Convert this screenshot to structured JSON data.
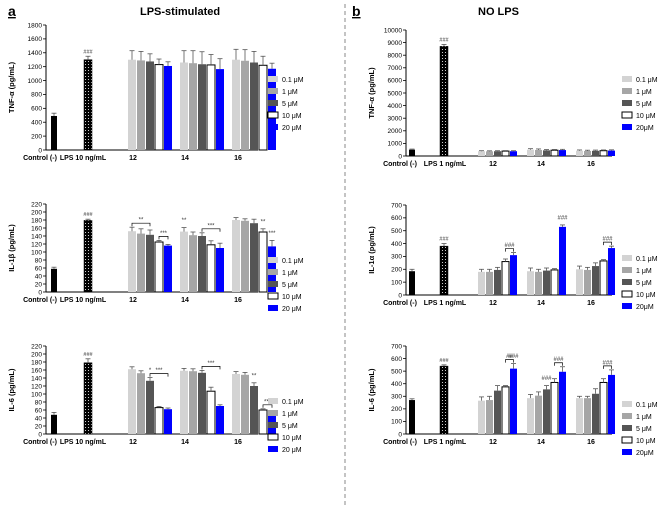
{
  "figure": {
    "panel_a": {
      "letter": "a",
      "title": "LPS-stimulated"
    },
    "panel_b": {
      "letter": "b",
      "title": "NO LPS"
    }
  },
  "colors": {
    "control": "#000000",
    "dose_fills": [
      "#d3d3d3",
      "#a6a6a6",
      "#555555",
      "#ffffff",
      "#0000ff"
    ]
  },
  "chart_data": [
    {
      "id": "a1",
      "type": "bar",
      "ylabel": "TNF-α (pg/mL)",
      "ylim": [
        0,
        1800
      ],
      "yticks": [
        0,
        200,
        400,
        600,
        800,
        1000,
        1200,
        1400,
        1600,
        1800
      ],
      "groups": [
        "Control (-)",
        "LPS 10 ng/mL",
        "12",
        "14",
        "16"
      ],
      "control": {
        "value": 490,
        "err": 40
      },
      "lps": {
        "value": 1300,
        "err": 50,
        "label": "###"
      },
      "legend": [
        "0.1 μM",
        "1 μM",
        "5 μM",
        "10 μM",
        "20 μM"
      ],
      "series_values": [
        [
          1300,
          1290,
          1275,
          1230,
          1210
        ],
        [
          1260,
          1250,
          1235,
          1225,
          1165
        ],
        [
          1300,
          1285,
          1260,
          1220,
          1170
        ]
      ],
      "series_err": [
        [
          130,
          130,
          110,
          80,
          60
        ],
        [
          170,
          180,
          180,
          150,
          150
        ],
        [
          150,
          160,
          160,
          130,
          80
        ]
      ],
      "annotations": []
    },
    {
      "id": "a2",
      "type": "bar",
      "ylabel": "IL-1β (pg/mL)",
      "ylim": [
        0,
        220
      ],
      "yticks": [
        0,
        20,
        40,
        60,
        80,
        100,
        120,
        140,
        160,
        180,
        200,
        220
      ],
      "groups": [
        "Control (-)",
        "LPS 10 ng/mL",
        "12",
        "14",
        "16"
      ],
      "control": {
        "value": 58,
        "err": 4
      },
      "lps": {
        "value": 179,
        "err": 3,
        "label": "###"
      },
      "legend": [
        "0.1 μM",
        "1 μM",
        "5 μM",
        "10 μM",
        "20 μM"
      ],
      "series_values": [
        [
          152,
          146,
          143,
          125,
          116
        ],
        [
          151,
          142,
          140,
          118,
          110
        ],
        [
          180,
          178,
          172,
          150,
          114
        ]
      ],
      "series_err": [
        [
          10,
          12,
          12,
          4,
          3
        ],
        [
          10,
          8,
          8,
          10,
          12
        ],
        [
          6,
          5,
          10,
          8,
          15
        ]
      ],
      "annotations": [
        {
          "group": 0,
          "from": 0,
          "to": 2,
          "label": "**"
        },
        {
          "group": 0,
          "from": 3,
          "to": 4,
          "label": "***"
        },
        {
          "group": 1,
          "from": 0,
          "to": 0,
          "label": "**"
        },
        {
          "group": 1,
          "from": 2,
          "to": 4,
          "label": "***"
        },
        {
          "group": 2,
          "from": 3,
          "to": 3,
          "label": "**"
        },
        {
          "group": 2,
          "from": 4,
          "to": 4,
          "label": "***"
        }
      ]
    },
    {
      "id": "a3",
      "type": "bar",
      "ylabel": "IL-6 (pg/mL)",
      "ylim": [
        0,
        220
      ],
      "yticks": [
        0,
        20,
        40,
        60,
        80,
        100,
        120,
        140,
        160,
        180,
        200,
        220
      ],
      "groups": [
        "Control (-)",
        "LPS 10 ng/mL",
        "12",
        "14",
        "16"
      ],
      "control": {
        "value": 48,
        "err": 6
      },
      "lps": {
        "value": 178,
        "err": 10,
        "label": "###"
      },
      "legend": [
        "0.1 μM",
        "1 μM",
        "5 μM",
        "10 μM",
        "20 μM"
      ],
      "series_values": [
        [
          162,
          152,
          133,
          66,
          62
        ],
        [
          158,
          157,
          153,
          107,
          70
        ],
        [
          150,
          148,
          120,
          60,
          52
        ]
      ],
      "series_err": [
        [
          6,
          6,
          8,
          3,
          3
        ],
        [
          6,
          6,
          6,
          10,
          3
        ],
        [
          6,
          6,
          8,
          3,
          5
        ]
      ],
      "annotations": [
        {
          "group": 0,
          "from": 2,
          "to": 2,
          "label": "*"
        },
        {
          "group": 0,
          "from": 2,
          "to": 4,
          "label": "***"
        },
        {
          "group": 1,
          "from": 2,
          "to": 4,
          "label": "***"
        },
        {
          "group": 2,
          "from": 2,
          "to": 2,
          "label": "**"
        },
        {
          "group": 2,
          "from": 3,
          "to": 4,
          "label": "***"
        }
      ]
    },
    {
      "id": "b1",
      "type": "bar",
      "ylabel": "TNF-α (pg/mL)",
      "ylim": [
        0,
        10000
      ],
      "yticks": [
        0,
        1000,
        2000,
        3000,
        4000,
        5000,
        6000,
        7000,
        8000,
        9000,
        10000
      ],
      "groups": [
        "Control (-)",
        "LPS 1 ng/mL",
        "12",
        "14",
        "16"
      ],
      "control": {
        "value": 500,
        "err": 50
      },
      "lps": {
        "value": 8700,
        "err": 150,
        "label": "###"
      },
      "legend": [
        "0.1 μM",
        "1 μM",
        "5 μM",
        "10 μM",
        "20μM"
      ],
      "series_values": [
        [
          380,
          370,
          380,
          390,
          380
        ],
        [
          500,
          480,
          450,
          460,
          470
        ],
        [
          420,
          400,
          410,
          420,
          430
        ]
      ],
      "series_err": [
        [
          40,
          40,
          40,
          40,
          40
        ],
        [
          80,
          80,
          60,
          60,
          60
        ],
        [
          60,
          60,
          60,
          60,
          60
        ]
      ],
      "annotations": []
    },
    {
      "id": "b2",
      "type": "bar",
      "ylabel": "IL-1α (pg/mL)",
      "ylim": [
        0,
        700
      ],
      "yticks": [
        0,
        100,
        200,
        300,
        400,
        500,
        600,
        700
      ],
      "groups": [
        "Control (-)",
        "LPS 1 ng/mL",
        "12",
        "14",
        "16"
      ],
      "control": {
        "value": 185,
        "err": 15
      },
      "lps": {
        "value": 380,
        "err": 20,
        "label": "###"
      },
      "legend": [
        "0.1 μM",
        "1 μM",
        "5 μM",
        "10 μM",
        "20μM"
      ],
      "series_values": [
        [
          180,
          180,
          195,
          260,
          310
        ],
        [
          185,
          180,
          190,
          195,
          530
        ],
        [
          200,
          195,
          225,
          265,
          365
        ]
      ],
      "series_err": [
        [
          20,
          20,
          20,
          20,
          20
        ],
        [
          25,
          20,
          20,
          10,
          15
        ],
        [
          25,
          20,
          25,
          10,
          15
        ]
      ],
      "annotations": [
        {
          "group": 0,
          "from": 3,
          "to": 4,
          "label": "###"
        },
        {
          "group": 1,
          "from": 4,
          "to": 4,
          "label": "###"
        },
        {
          "group": 2,
          "from": 3,
          "to": 4,
          "label": "###"
        }
      ]
    },
    {
      "id": "b3",
      "type": "bar",
      "ylabel": "IL-6 (pg/mL)",
      "ylim": [
        0,
        700
      ],
      "yticks": [
        0,
        100,
        200,
        300,
        400,
        500,
        600,
        700
      ],
      "groups": [
        "Control (-)",
        "LPS 1 ng/mL",
        "12",
        "14",
        "16"
      ],
      "control": {
        "value": 270,
        "err": 10
      },
      "lps": {
        "value": 540,
        "err": 10,
        "label": "###"
      },
      "legend": [
        "0.1 μM",
        "1 μM",
        "5 μM",
        "10 μM",
        "20μM"
      ],
      "series_values": [
        [
          265,
          270,
          345,
          375,
          520
        ],
        [
          285,
          305,
          355,
          410,
          495
        ],
        [
          285,
          285,
          320,
          410,
          470
        ]
      ],
      "series_err": [
        [
          30,
          30,
          40,
          10,
          40
        ],
        [
          30,
          30,
          30,
          30,
          40
        ],
        [
          15,
          15,
          40,
          30,
          40
        ]
      ],
      "annotations": [
        {
          "group": 0,
          "from": 3,
          "to": 4,
          "label": "##"
        },
        {
          "group": 0,
          "from": 4,
          "to": 4,
          "label": "###"
        },
        {
          "group": 1,
          "from": 2,
          "to": 2,
          "label": "###"
        },
        {
          "group": 1,
          "from": 3,
          "to": 4,
          "label": "###"
        },
        {
          "group": 2,
          "from": 3,
          "to": 4,
          "label": "###"
        }
      ]
    }
  ]
}
